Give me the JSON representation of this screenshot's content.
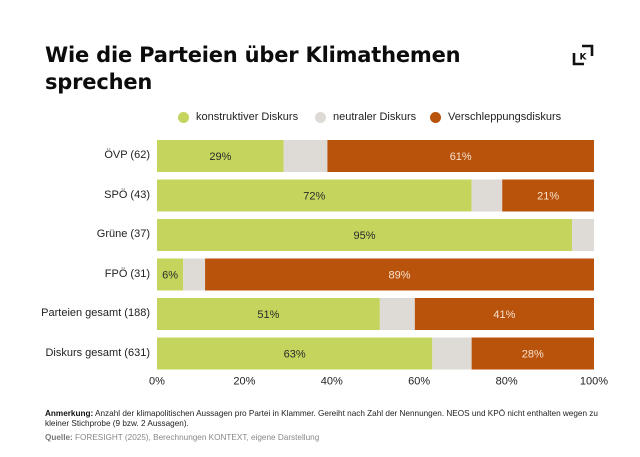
{
  "header": {
    "title": "Wie die Parteien über Klimathemen sprechen",
    "logo_icon": "kontext-k-logo"
  },
  "colors": {
    "konstruktiv": "#c5d45d",
    "neutral": "#dedbd6",
    "verschleppung": "#b9520a",
    "label_dark": "#2a2a2a",
    "label_light": "#f5e3d0"
  },
  "chart_data": {
    "type": "bar",
    "orientation": "horizontal",
    "stacked": true,
    "title": "Wie die Parteien über Klimathemen sprechen",
    "xlabel": "",
    "ylabel": "",
    "xlim": [
      0,
      100
    ],
    "x_ticks": [
      "0%",
      "20%",
      "40%",
      "60%",
      "80%",
      "100%"
    ],
    "legend_position": "top",
    "categories": [
      "ÖVP (62)",
      "SPÖ (43)",
      "Grüne (37)",
      "FPÖ (31)",
      "Parteien gesamt (188)",
      "Diskurs gesamt (631)"
    ],
    "series": [
      {
        "name": "konstruktiver Diskurs",
        "key": "konstruktiv",
        "values": [
          29,
          72,
          95,
          6,
          51,
          63
        ],
        "labels": [
          "29%",
          "72%",
          "95%",
          "6%",
          "51%",
          "63%"
        ]
      },
      {
        "name": "neutraler Diskurs",
        "key": "neutral",
        "values": [
          10,
          7,
          5,
          5,
          8,
          9
        ],
        "labels": [
          "",
          "",
          "",
          "",
          "",
          ""
        ]
      },
      {
        "name": "Verschleppungsdiskurs",
        "key": "verschleppung",
        "values": [
          61,
          21,
          0,
          89,
          41,
          28
        ],
        "labels": [
          "61%",
          "21%",
          "",
          "89%",
          "41%",
          "28%"
        ]
      }
    ]
  },
  "footer": {
    "note_label": "Anmerkung:",
    "note_text": " Anzahl der klimapolitischen Aussagen pro Partei in Klammer. Gereiht nach Zahl der Nennungen. NEOS und KPÖ nicht enthalten wegen zu kleiner Stichprobe (9 bzw. 2 Aussagen).",
    "source_label": "Quelle:",
    "source_text": " FORESIGHT (2025), Berechnungen KONTEXT, eigene Darstellung"
  }
}
